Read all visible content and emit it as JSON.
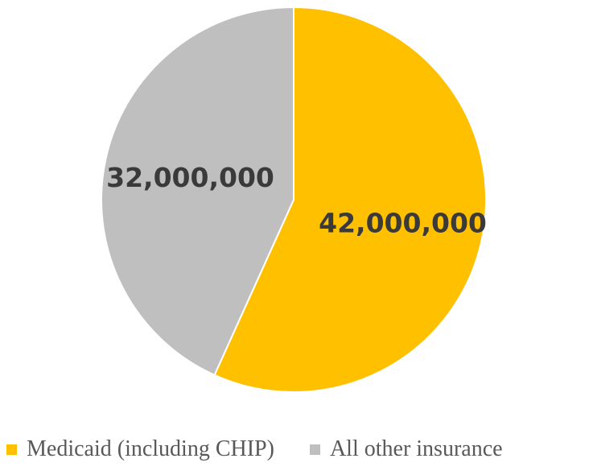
{
  "chart_data": {
    "type": "pie",
    "title": "",
    "categories": [
      "Medicaid (including CHIP)",
      "All other insurance"
    ],
    "values": [
      42000000,
      32000000
    ],
    "data_labels": [
      "42,000,000",
      "32,000,000"
    ],
    "colors": [
      "#FFC000",
      "#BFBFBF"
    ],
    "start_angle_deg": 0,
    "direction": "clockwise",
    "legend_position": "bottom"
  }
}
